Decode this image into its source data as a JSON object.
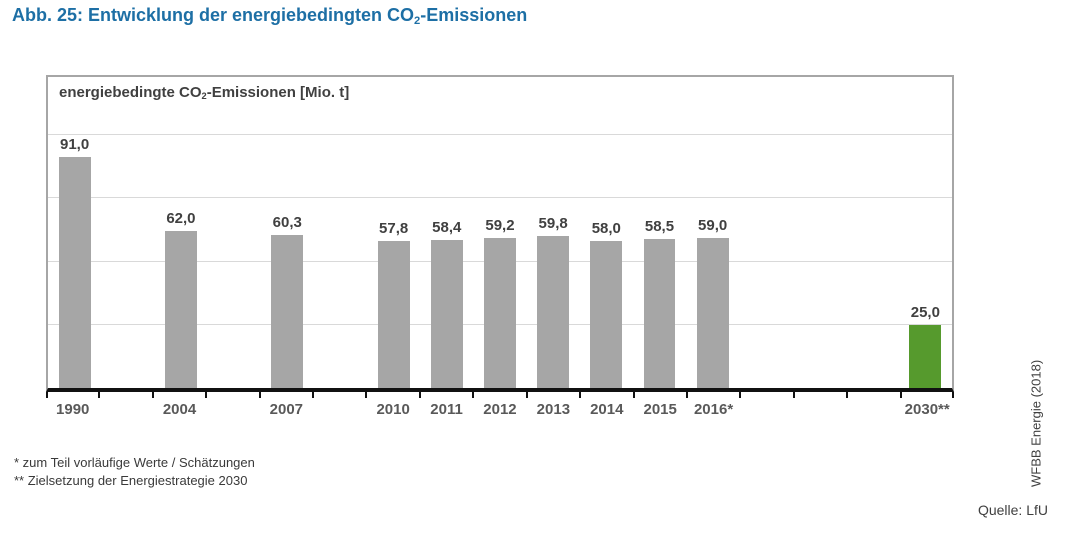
{
  "figure_title": {
    "prefix": "Abb. 25: Entwicklung der energiebedingten CO",
    "subscript": "2",
    "suffix": "-Emissionen"
  },
  "chart_header": {
    "prefix": "energiebedingte CO",
    "subscript": "2",
    "suffix": "-Emissionen [Mio. t]"
  },
  "chart_data": {
    "type": "bar",
    "title": "energiebedingte CO2-Emissionen [Mio. t]",
    "xlabel": "",
    "ylabel": "energiebedingte CO2-Emissionen [Mio. t]",
    "categories": [
      "1990",
      "2004",
      "2007",
      "2010",
      "2011",
      "2012",
      "2013",
      "2014",
      "2015",
      "2016*",
      "2030**"
    ],
    "values": [
      91.0,
      62.0,
      60.3,
      57.8,
      58.4,
      59.2,
      59.8,
      58.0,
      58.5,
      59.0,
      25.0
    ],
    "value_labels": [
      "91,0",
      "62,0",
      "60,3",
      "57,8",
      "58,4",
      "59,2",
      "59,8",
      "58,0",
      "58,5",
      "59,0",
      "25,0"
    ],
    "slot_map": [
      0,
      null,
      1,
      null,
      2,
      null,
      3,
      4,
      5,
      6,
      7,
      8,
      9,
      null,
      null,
      null,
      10
    ],
    "ylim": [
      0,
      122.5
    ],
    "gridlines": [
      25,
      50,
      75,
      100
    ],
    "gridline_interval": 25,
    "grid_on": true,
    "legend_position": "none",
    "bar_color": "#a6a6a6",
    "highlight_color": "#569a2d",
    "highlight_category": "2030**",
    "grid_color": "#d9d9d9"
  },
  "footnotes": [
    "* zum Teil vorläufige Werte / Schätzungen",
    "** Zielsetzung der Energiestrategie 2030"
  ],
  "side_label": "WFBB Energie (2018)",
  "source_label": "Quelle: LfU",
  "colors": {
    "figure_title": "#1d6fa5",
    "text_dark": "#404040",
    "axis_label_text": "#595959",
    "axis_line": "#111111",
    "box_border": "#a6a6a6"
  }
}
